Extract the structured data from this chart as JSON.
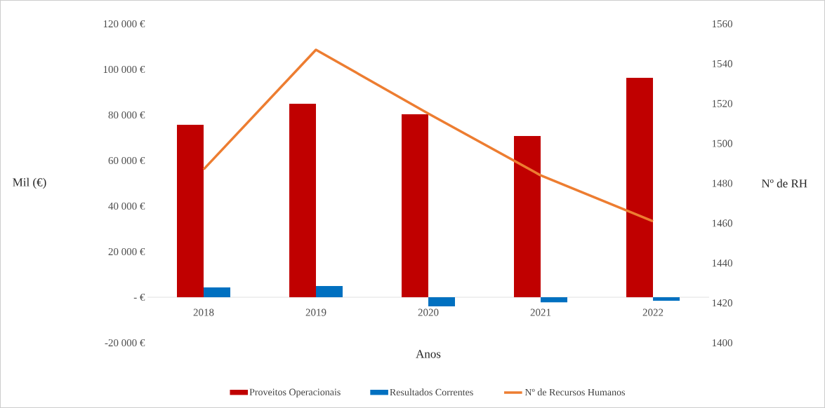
{
  "chart_data": {
    "type": "bar",
    "xlabel": "Anos",
    "ylabel": "Mil (€)",
    "y2label": "Nº de RH",
    "legend": "bottom",
    "categories": [
      "2018",
      "2019",
      "2020",
      "2021",
      "2022"
    ],
    "series": [
      {
        "name": "Proveitos Operacionais",
        "color": "#c00000",
        "values": [
          75700,
          84900,
          80300,
          70800,
          96300
        ]
      },
      {
        "name": "Resultados Correntes",
        "color": "#0070c0",
        "values": [
          4300,
          4900,
          -4000,
          -2200,
          -1500
        ]
      },
      {
        "name": "Nº de Recursos Humanos",
        "type": "line",
        "axis": "y2",
        "color": "#ed7d31",
        "values": [
          1487,
          1547,
          1515,
          1484,
          1461
        ]
      }
    ],
    "ylim": [
      -20000,
      120000
    ],
    "yticks": [
      {
        "value": -20000,
        "label": "-20 000 €"
      },
      {
        "value": 0,
        "label": "-  €"
      },
      {
        "value": 20000,
        "label": "20 000 €"
      },
      {
        "value": 40000,
        "label": "40 000 €"
      },
      {
        "value": 60000,
        "label": "60 000 €"
      },
      {
        "value": 80000,
        "label": "80 000 €"
      },
      {
        "value": 100000,
        "label": "100 000 €"
      },
      {
        "value": 120000,
        "label": "120 000 €"
      }
    ],
    "y2lim": [
      1400,
      1560
    ],
    "y2ticks": [
      1400,
      1420,
      1440,
      1460,
      1480,
      1500,
      1520,
      1540,
      1560
    ]
  }
}
